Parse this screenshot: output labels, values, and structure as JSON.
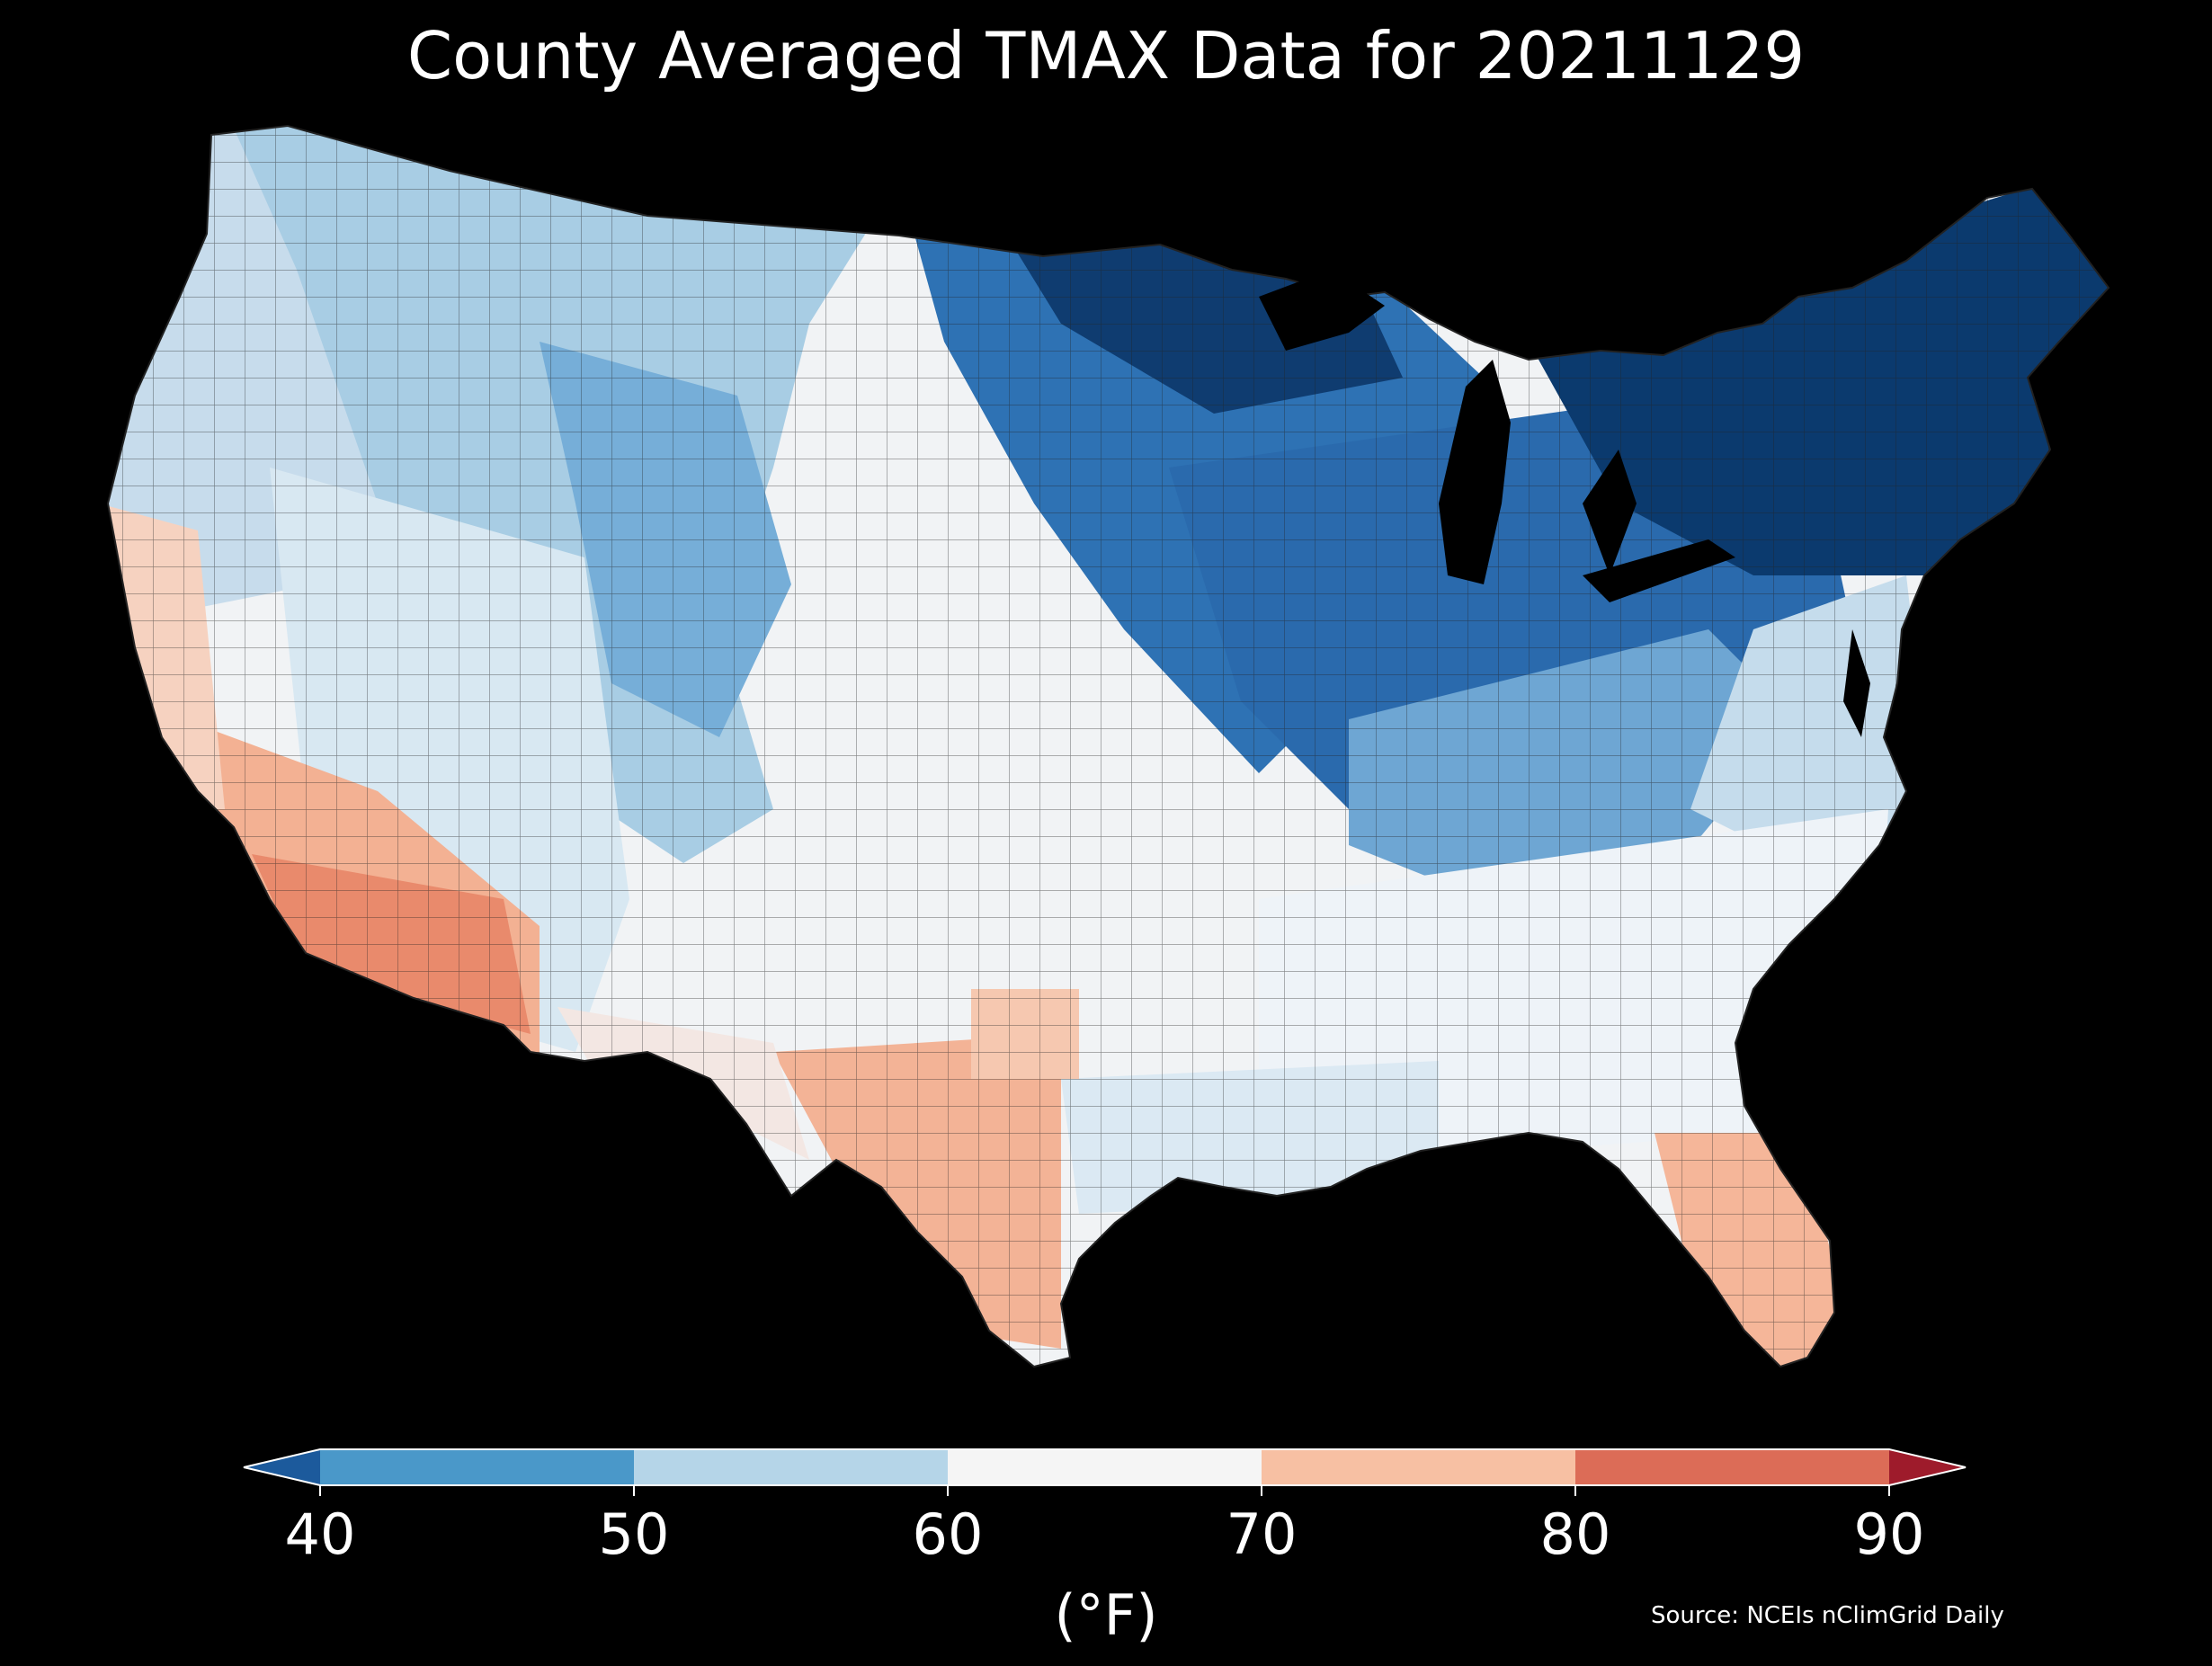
{
  "title": "County Averaged TMAX Data for 20211129",
  "colorbar": {
    "ticks": [
      "40",
      "50",
      "60",
      "70",
      "80",
      "90"
    ],
    "units": "(°F)",
    "bins": [
      {
        "from": 40,
        "to": 50,
        "color": "#4a98c9"
      },
      {
        "from": 50,
        "to": 60,
        "color": "#b5d5e8"
      },
      {
        "from": 60,
        "to": 70,
        "color": "#f5f5f5"
      },
      {
        "from": 70,
        "to": 80,
        "color": "#f7c0a3"
      },
      {
        "from": 80,
        "to": 90,
        "color": "#dc6c57"
      }
    ],
    "under_color": "#1c5a9c",
    "over_color": "#9e1b2b"
  },
  "source": "Source: NCEIs nClimGrid Daily",
  "map": {
    "background": "#000000",
    "ocean_and_lakes": "#000000",
    "county_border_color": "#1a1a1a",
    "region_colors": {
      "northeast": "#0b3a6e",
      "upper_midwest": "#0f4a86",
      "great_lakes_ohio": "#2f73b5",
      "appalachia": "#7fb3d9",
      "northern_rockies": "#7fb6db",
      "northwest": "#bcd8ea",
      "great_basin": "#d6e6f1",
      "southeast": "#eef3f7",
      "plains": "#f3f4f6",
      "florida": "#f6b79b",
      "south_texas": "#f3b396",
      "southern_california_arizona": "#e98c6e",
      "central_valley_coast": "#f6cdb8"
    }
  }
}
